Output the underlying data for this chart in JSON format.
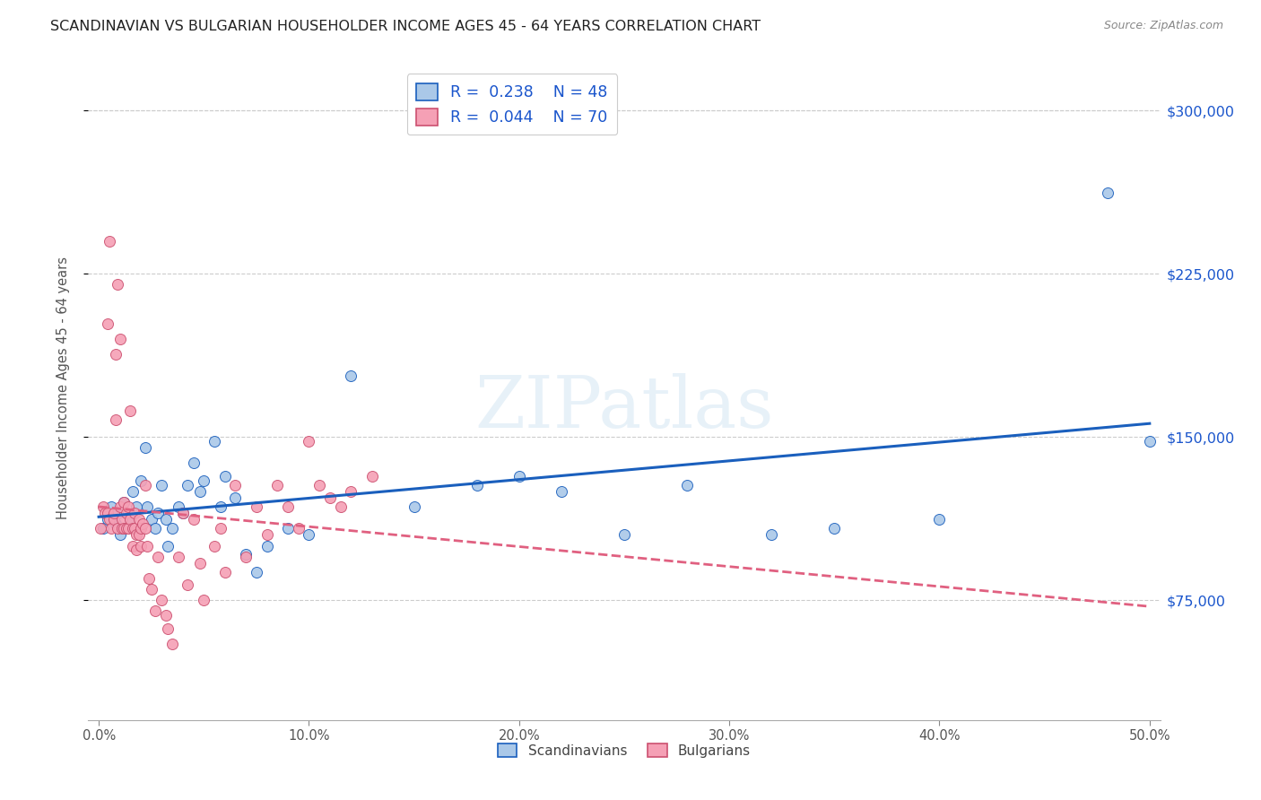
{
  "title": "SCANDINAVIAN VS BULGARIAN HOUSEHOLDER INCOME AGES 45 - 64 YEARS CORRELATION CHART",
  "source": "Source: ZipAtlas.com",
  "ylabel": "Householder Income Ages 45 - 64 years",
  "xlabel_ticks": [
    "0.0%",
    "10.0%",
    "20.0%",
    "30.0%",
    "40.0%",
    "50.0%"
  ],
  "xlabel_tick_vals": [
    0.0,
    0.1,
    0.2,
    0.3,
    0.4,
    0.5
  ],
  "ytick_labels": [
    "$75,000",
    "$150,000",
    "$225,000",
    "$300,000"
  ],
  "ytick_vals": [
    75000,
    150000,
    225000,
    300000
  ],
  "ylim": [
    20000,
    325000
  ],
  "xlim": [
    -0.005,
    0.505
  ],
  "watermark": "ZIPatlas",
  "legend_r_scand": "R =  0.238",
  "legend_n_scand": "N = 48",
  "legend_r_bulg": "R =  0.044",
  "legend_n_bulg": "N = 70",
  "scand_color": "#aac8e8",
  "bulg_color": "#f5a0b5",
  "scand_line_color": "#1a5fbd",
  "bulg_line_color": "#e06080",
  "title_fontsize": 11.5,
  "source_fontsize": 9,
  "scandinavians_x": [
    0.002,
    0.004,
    0.006,
    0.008,
    0.009,
    0.01,
    0.012,
    0.013,
    0.015,
    0.016,
    0.018,
    0.02,
    0.022,
    0.023,
    0.025,
    0.027,
    0.028,
    0.03,
    0.032,
    0.033,
    0.035,
    0.038,
    0.04,
    0.042,
    0.045,
    0.048,
    0.05,
    0.055,
    0.058,
    0.06,
    0.065,
    0.07,
    0.075,
    0.08,
    0.09,
    0.1,
    0.12,
    0.15,
    0.18,
    0.2,
    0.22,
    0.25,
    0.28,
    0.32,
    0.35,
    0.4,
    0.48,
    0.5
  ],
  "scandinavians_y": [
    108000,
    112000,
    118000,
    110000,
    115000,
    105000,
    120000,
    108000,
    112000,
    125000,
    118000,
    130000,
    145000,
    118000,
    112000,
    108000,
    115000,
    128000,
    112000,
    100000,
    108000,
    118000,
    115000,
    128000,
    138000,
    125000,
    130000,
    148000,
    118000,
    132000,
    122000,
    96000,
    88000,
    100000,
    108000,
    105000,
    178000,
    118000,
    128000,
    132000,
    125000,
    105000,
    128000,
    105000,
    108000,
    112000,
    262000,
    148000
  ],
  "bulgarians_x": [
    0.001,
    0.002,
    0.003,
    0.004,
    0.004,
    0.005,
    0.005,
    0.006,
    0.007,
    0.007,
    0.008,
    0.008,
    0.009,
    0.009,
    0.01,
    0.01,
    0.011,
    0.011,
    0.012,
    0.012,
    0.013,
    0.013,
    0.014,
    0.014,
    0.015,
    0.015,
    0.016,
    0.016,
    0.017,
    0.017,
    0.018,
    0.018,
    0.019,
    0.019,
    0.02,
    0.02,
    0.021,
    0.022,
    0.022,
    0.023,
    0.024,
    0.025,
    0.027,
    0.028,
    0.03,
    0.032,
    0.033,
    0.035,
    0.038,
    0.04,
    0.042,
    0.045,
    0.048,
    0.05,
    0.055,
    0.058,
    0.06,
    0.065,
    0.07,
    0.075,
    0.08,
    0.085,
    0.09,
    0.095,
    0.1,
    0.105,
    0.11,
    0.115,
    0.12,
    0.13
  ],
  "bulgarians_y": [
    108000,
    118000,
    115000,
    115000,
    202000,
    112000,
    240000,
    108000,
    112000,
    115000,
    188000,
    158000,
    220000,
    108000,
    195000,
    118000,
    108000,
    112000,
    108000,
    120000,
    115000,
    108000,
    118000,
    108000,
    162000,
    112000,
    108000,
    100000,
    115000,
    108000,
    105000,
    98000,
    112000,
    105000,
    108000,
    100000,
    110000,
    128000,
    108000,
    100000,
    85000,
    80000,
    70000,
    95000,
    75000,
    68000,
    62000,
    55000,
    95000,
    115000,
    82000,
    112000,
    92000,
    75000,
    100000,
    108000,
    88000,
    128000,
    95000,
    118000,
    105000,
    128000,
    118000,
    108000,
    148000,
    128000,
    122000,
    118000,
    125000,
    132000
  ]
}
